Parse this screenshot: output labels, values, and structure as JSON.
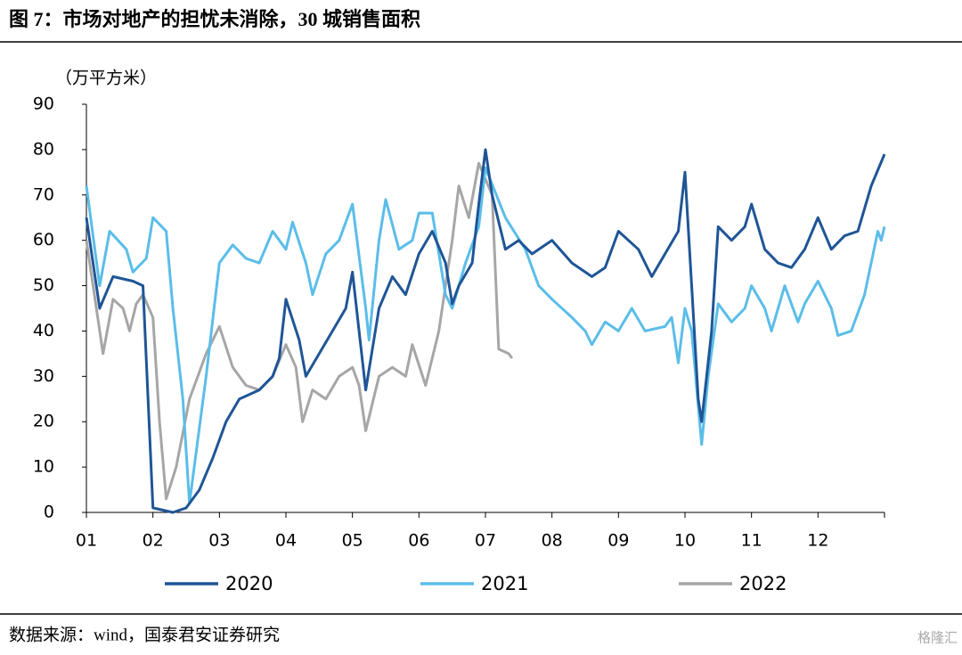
{
  "chart_data": {
    "type": "line",
    "title": "图 7：市场对地产的担忧未消除，30 城销售面积",
    "y_label": "（万平方米）",
    "source": "数据来源：wind，国泰君安证券研究",
    "watermark": "格隆汇",
    "xlim": [
      1,
      13
    ],
    "xticks": [
      {
        "value": 1,
        "label": "01"
      },
      {
        "value": 2,
        "label": "02"
      },
      {
        "value": 3,
        "label": "03"
      },
      {
        "value": 4,
        "label": "04"
      },
      {
        "value": 5,
        "label": "05"
      },
      {
        "value": 6,
        "label": "06"
      },
      {
        "value": 7,
        "label": "07"
      },
      {
        "value": 8,
        "label": "08"
      },
      {
        "value": 9,
        "label": "09"
      },
      {
        "value": 10,
        "label": "10"
      },
      {
        "value": 11,
        "label": "11"
      },
      {
        "value": 12,
        "label": "12"
      }
    ],
    "ylim": [
      0,
      90
    ],
    "yticks": [
      0,
      10,
      20,
      30,
      40,
      50,
      60,
      70,
      80,
      90
    ],
    "legend": "bottom",
    "series": [
      {
        "name": "2020",
        "color": "#1f5596",
        "x": [
          1.0,
          1.2,
          1.4,
          1.7,
          1.85,
          2.0,
          2.3,
          2.5,
          2.7,
          2.9,
          3.1,
          3.3,
          3.6,
          3.8,
          3.9,
          4.0,
          4.2,
          4.3,
          4.5,
          4.7,
          4.9,
          5.0,
          5.1,
          5.2,
          5.4,
          5.6,
          5.8,
          6.0,
          6.2,
          6.4,
          6.5,
          6.6,
          6.8,
          6.9,
          7.0,
          7.1,
          7.3,
          7.5,
          7.7,
          8.0,
          8.3,
          8.6,
          8.8,
          9.0,
          9.3,
          9.5,
          9.7,
          9.9,
          10.0,
          10.1,
          10.2,
          10.25,
          10.4,
          10.5,
          10.7,
          10.9,
          11.0,
          11.2,
          11.4,
          11.6,
          11.8,
          12.0,
          12.2,
          12.4,
          12.6,
          12.8,
          13.0
        ],
        "values": [
          65,
          45,
          52,
          51,
          50,
          1,
          0,
          1,
          5,
          12,
          20,
          25,
          27,
          30,
          34,
          47,
          38,
          30,
          35,
          40,
          45,
          53,
          40,
          27,
          45,
          52,
          48,
          57,
          62,
          55,
          46,
          50,
          55,
          68,
          80,
          70,
          58,
          60,
          57,
          60,
          55,
          52,
          54,
          62,
          58,
          52,
          57,
          62,
          75,
          50,
          25,
          20,
          40,
          63,
          60,
          63,
          68,
          58,
          55,
          54,
          58,
          65,
          58,
          61,
          62,
          72,
          79
        ]
      },
      {
        "name": "2021",
        "color": "#5bbde9",
        "x": [
          1.0,
          1.2,
          1.35,
          1.6,
          1.7,
          1.9,
          2.0,
          2.2,
          2.3,
          2.45,
          2.55,
          2.8,
          3.0,
          3.2,
          3.4,
          3.6,
          3.8,
          4.0,
          4.1,
          4.3,
          4.4,
          4.6,
          4.8,
          5.0,
          5.2,
          5.25,
          5.4,
          5.5,
          5.7,
          5.9,
          6.0,
          6.2,
          6.4,
          6.5,
          6.7,
          6.9,
          7.0,
          7.3,
          7.6,
          7.8,
          8.0,
          8.3,
          8.5,
          8.6,
          8.8,
          9.0,
          9.2,
          9.4,
          9.7,
          9.8,
          9.9,
          10.0,
          10.1,
          10.25,
          10.35,
          10.5,
          10.7,
          10.9,
          11.0,
          11.2,
          11.3,
          11.5,
          11.7,
          11.8,
          12.0,
          12.2,
          12.3,
          12.5,
          12.7,
          12.9,
          12.95,
          13.0
        ],
        "values": [
          72,
          50,
          62,
          58,
          53,
          56,
          65,
          62,
          45,
          25,
          2,
          30,
          55,
          59,
          56,
          55,
          62,
          58,
          64,
          55,
          48,
          57,
          60,
          68,
          45,
          38,
          60,
          69,
          58,
          60,
          66,
          66,
          48,
          45,
          55,
          63,
          76,
          65,
          58,
          50,
          47,
          43,
          40,
          37,
          42,
          40,
          45,
          40,
          41,
          43,
          33,
          45,
          40,
          15,
          30,
          46,
          42,
          45,
          50,
          45,
          40,
          50,
          42,
          46,
          51,
          45,
          39,
          40,
          48,
          62,
          60,
          63
        ]
      },
      {
        "name": "2022",
        "color": "#a6a6a6",
        "x": [
          1.0,
          1.15,
          1.25,
          1.4,
          1.55,
          1.65,
          1.75,
          1.85,
          2.0,
          2.1,
          2.2,
          2.35,
          2.55,
          2.8,
          3.0,
          3.2,
          3.4,
          3.6,
          3.8,
          4.0,
          4.15,
          4.25,
          4.4,
          4.6,
          4.8,
          5.0,
          5.1,
          5.2,
          5.4,
          5.6,
          5.8,
          5.9,
          6.1,
          6.3,
          6.5,
          6.6,
          6.75,
          6.9,
          7.1,
          7.2,
          7.35,
          7.4
        ],
        "values": [
          60,
          45,
          35,
          47,
          45,
          40,
          46,
          48,
          43,
          20,
          3,
          10,
          25,
          35,
          41,
          32,
          28,
          27,
          30,
          37,
          32,
          20,
          27,
          25,
          30,
          32,
          28,
          18,
          30,
          32,
          30,
          37,
          28,
          40,
          60,
          72,
          65,
          77,
          70,
          36,
          35,
          34
        ]
      }
    ]
  }
}
